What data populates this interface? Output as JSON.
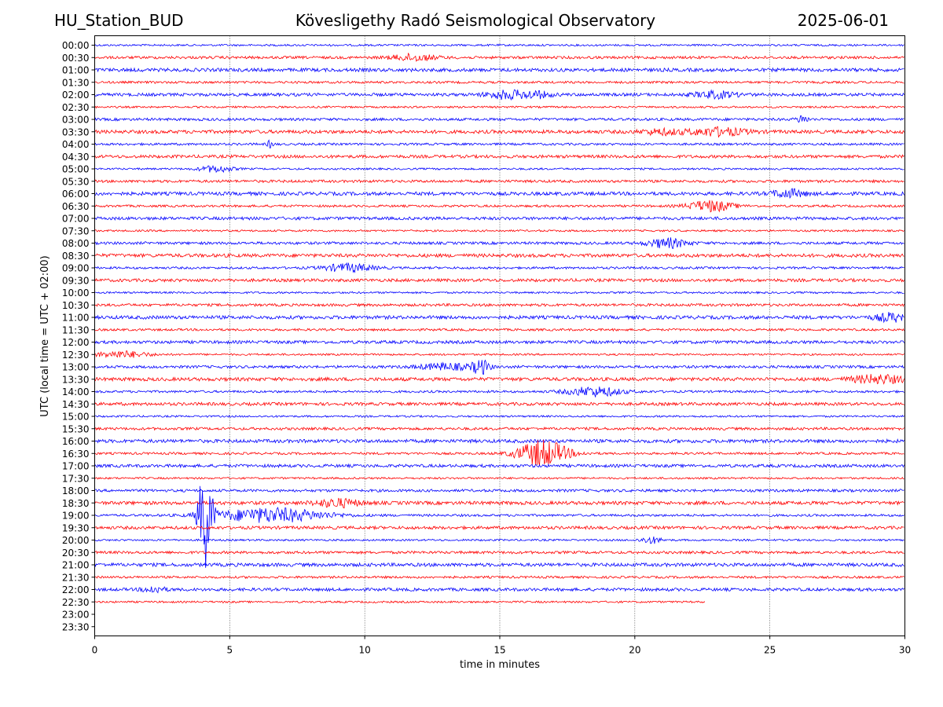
{
  "header": {
    "station": "HU_Station_BUD",
    "observatory": "Kövesligethy Radó Seismological Observatory",
    "date": "2025-06-01"
  },
  "chart_data": {
    "type": "helicorder",
    "xlabel": "time in minutes",
    "ylabel": "UTC (local time = UTC + 02:00)",
    "xlim": [
      0,
      30
    ],
    "x_ticks": [
      "0",
      "5",
      "10",
      "15",
      "20",
      "25",
      "30"
    ],
    "x_tick_values": [
      0,
      5,
      10,
      15,
      20,
      25,
      30
    ],
    "rows": [
      "00:00",
      "00:30",
      "01:00",
      "01:30",
      "02:00",
      "02:30",
      "03:00",
      "03:30",
      "04:00",
      "04:30",
      "05:00",
      "05:30",
      "06:00",
      "06:30",
      "07:00",
      "07:30",
      "08:00",
      "08:30",
      "09:00",
      "09:30",
      "10:00",
      "10:30",
      "11:00",
      "11:30",
      "12:00",
      "12:30",
      "13:00",
      "13:30",
      "14:00",
      "14:30",
      "15:00",
      "15:30",
      "16:00",
      "16:30",
      "17:00",
      "17:30",
      "18:00",
      "18:30",
      "19:00",
      "19:30",
      "20:00",
      "20:30",
      "21:00",
      "21:30",
      "22:00",
      "22:30",
      "23:00",
      "23:30"
    ],
    "colors": [
      "#0000ff",
      "#ff0000"
    ],
    "grid": "vertical dotted at x ticks",
    "data_end": {
      "row": "22:30",
      "minute": 22.6
    },
    "events": [
      {
        "row": "00:30",
        "minute": 11.8,
        "amp": 4,
        "width": 0.8
      },
      {
        "row": "02:00",
        "minute": 15.2,
        "amp": 5,
        "width": 0.7
      },
      {
        "row": "02:00",
        "minute": 16.3,
        "amp": 4,
        "width": 0.6
      },
      {
        "row": "02:00",
        "minute": 23.0,
        "amp": 4,
        "width": 0.8
      },
      {
        "row": "03:00",
        "minute": 26.2,
        "amp": 5,
        "width": 0.2
      },
      {
        "row": "03:30",
        "minute": 23.1,
        "amp": 5,
        "width": 1.0
      },
      {
        "row": "03:30",
        "minute": 21.0,
        "amp": 3,
        "width": 0.8
      },
      {
        "row": "04:00",
        "minute": 6.5,
        "amp": 5,
        "width": 0.1
      },
      {
        "row": "05:00",
        "minute": 4.5,
        "amp": 4,
        "width": 0.6
      },
      {
        "row": "06:00",
        "minute": 25.7,
        "amp": 5,
        "width": 0.6
      },
      {
        "row": "06:30",
        "minute": 22.8,
        "amp": 7,
        "width": 0.8
      },
      {
        "row": "08:00",
        "minute": 21.2,
        "amp": 6,
        "width": 0.7
      },
      {
        "row": "09:00",
        "minute": 9.4,
        "amp": 5,
        "width": 0.9
      },
      {
        "row": "11:00",
        "minute": 29.5,
        "amp": 5,
        "width": 0.6
      },
      {
        "row": "12:30",
        "minute": 1.0,
        "amp": 4,
        "width": 1.0
      },
      {
        "row": "13:00",
        "minute": 14.3,
        "amp": 9,
        "width": 0.3
      },
      {
        "row": "13:00",
        "minute": 13.0,
        "amp": 4,
        "width": 1.0
      },
      {
        "row": "13:30",
        "minute": 29.0,
        "amp": 5,
        "width": 1.0
      },
      {
        "row": "14:00",
        "minute": 18.5,
        "amp": 6,
        "width": 1.0
      },
      {
        "row": "16:30",
        "minute": 16.6,
        "amp": 17,
        "width": 0.9
      },
      {
        "row": "18:30",
        "minute": 9.0,
        "amp": 5,
        "width": 0.8
      },
      {
        "row": "19:00",
        "minute": 4.1,
        "amp": 65,
        "width": 0.25
      },
      {
        "row": "19:00",
        "minute": 6.5,
        "amp": 9,
        "width": 2.0
      },
      {
        "row": "20:00",
        "minute": 20.6,
        "amp": 4,
        "width": 0.4
      },
      {
        "row": "22:00",
        "minute": 2.2,
        "amp": 4,
        "width": 0.4
      }
    ]
  }
}
